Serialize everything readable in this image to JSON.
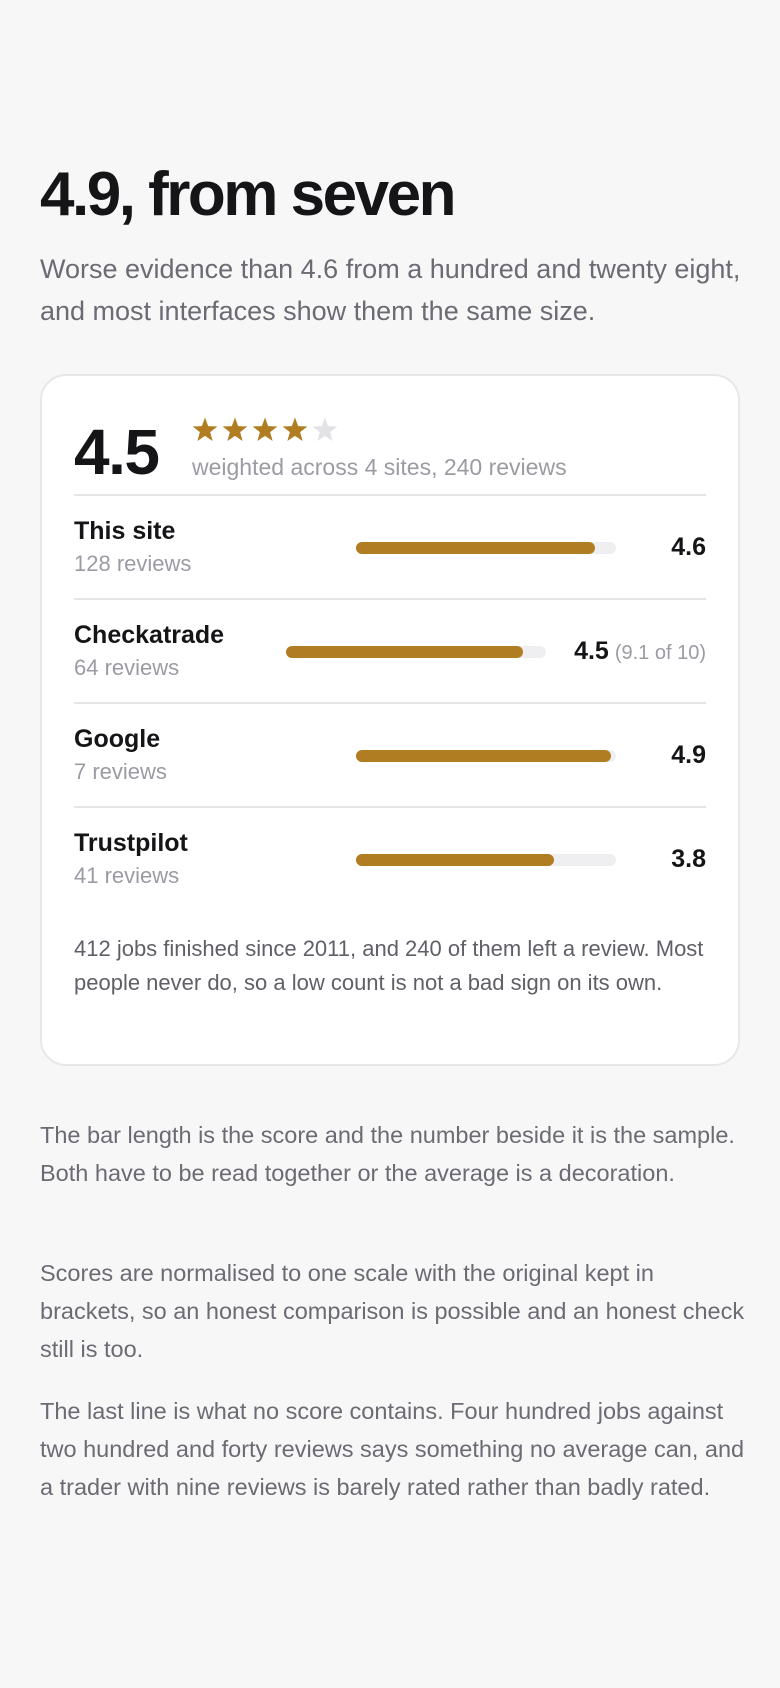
{
  "heading": {
    "title": "4.9, from seven",
    "subtitle": "Worse evidence than 4.6 from a hundred and twenty eight, and most interfaces show them the same size."
  },
  "card": {
    "overall_score": "4.5",
    "star_rating": 4.5,
    "star_max": 5,
    "summary": "weighted across 4 sites, 240 reviews",
    "rows": [
      {
        "name": "This site",
        "count": "128 reviews",
        "score": "4.6",
        "original": "",
        "fraction": 0.92
      },
      {
        "name": "Checkatrade",
        "count": "64 reviews",
        "score": "4.5",
        "original": "(9.1 of 10)",
        "fraction": 0.91
      },
      {
        "name": "Google",
        "count": "7 reviews",
        "score": "4.9",
        "original": "",
        "fraction": 0.98
      },
      {
        "name": "Trustpilot",
        "count": "41 reviews",
        "score": "3.8",
        "original": "",
        "fraction": 0.76
      }
    ],
    "note": "412 jobs finished since 2011, and 240 of them left a review. Most people never do, so a low count is not a bad sign on its own."
  },
  "paragraphs": [
    "The bar length is the score and the number beside it is the sample. Both have to be read together or the average is a decoration.",
    "Scores are normalised to one scale with the original kept in brackets, so an honest comparison is possible and an honest check still is too.",
    "The last line is what no score contains. Four hundred jobs against two hundred and forty reviews says something no average can, and a trader with nine reviews is barely rated rather than badly rated."
  ],
  "colors": {
    "accent": "#b07d22",
    "track": "#efeff1",
    "star_empty": "#e3e3e6"
  },
  "icons": {
    "star": "star-icon"
  }
}
